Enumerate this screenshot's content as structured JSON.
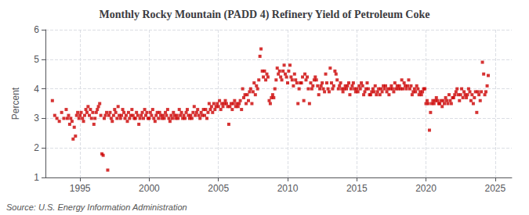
{
  "chart_data": {
    "type": "scatter",
    "title": "Monthly Rocky Mountain (PADD 4) Refinery Yield of Petroleum Coke",
    "ylabel": "Percent",
    "annotation": "Source: U.S. Energy Information Administration",
    "color": "#cc0000",
    "marker": "square",
    "grid": true,
    "xlim": [
      1992.5,
      2026.2
    ],
    "xticks": [
      1995,
      2000,
      2005,
      2010,
      2015,
      2020,
      2025
    ],
    "ylim": [
      1,
      6
    ],
    "yticks": [
      1,
      2,
      3,
      4,
      5,
      6
    ],
    "x": [
      1993.0,
      1993.17,
      1993.33,
      1993.5,
      1993.67,
      1993.83,
      1994.0,
      1994.08,
      1994.17,
      1994.25,
      1994.33,
      1994.42,
      1994.5,
      1994.58,
      1994.67,
      1994.75,
      1994.83,
      1994.92,
      1995.0,
      1995.08,
      1995.17,
      1995.25,
      1995.33,
      1995.42,
      1995.5,
      1995.58,
      1995.67,
      1995.75,
      1995.83,
      1995.92,
      1996.0,
      1996.08,
      1996.17,
      1996.25,
      1996.33,
      1996.42,
      1996.5,
      1996.58,
      1996.67,
      1996.75,
      1996.83,
      1996.92,
      1997.0,
      1997.08,
      1997.17,
      1997.25,
      1997.33,
      1997.42,
      1997.5,
      1997.58,
      1997.67,
      1997.75,
      1997.83,
      1997.92,
      1998.0,
      1998.08,
      1998.17,
      1998.25,
      1998.33,
      1998.42,
      1998.5,
      1998.58,
      1998.67,
      1998.75,
      1998.83,
      1998.92,
      1999.0,
      1999.08,
      1999.17,
      1999.25,
      1999.33,
      1999.42,
      1999.5,
      1999.58,
      1999.67,
      1999.75,
      1999.83,
      1999.92,
      2000.0,
      2000.08,
      2000.17,
      2000.25,
      2000.33,
      2000.42,
      2000.5,
      2000.58,
      2000.67,
      2000.75,
      2000.83,
      2000.92,
      2001.0,
      2001.08,
      2001.17,
      2001.25,
      2001.33,
      2001.42,
      2001.5,
      2001.58,
      2001.67,
      2001.75,
      2001.83,
      2001.92,
      2002.0,
      2002.08,
      2002.17,
      2002.25,
      2002.33,
      2002.42,
      2002.5,
      2002.58,
      2002.67,
      2002.75,
      2002.83,
      2002.92,
      2003.0,
      2003.08,
      2003.17,
      2003.25,
      2003.33,
      2003.42,
      2003.5,
      2003.58,
      2003.67,
      2003.75,
      2003.83,
      2003.92,
      2004.0,
      2004.08,
      2004.17,
      2004.25,
      2004.33,
      2004.42,
      2004.5,
      2004.58,
      2004.67,
      2004.75,
      2004.83,
      2004.92,
      2005.0,
      2005.08,
      2005.17,
      2005.25,
      2005.33,
      2005.42,
      2005.5,
      2005.58,
      2005.67,
      2005.75,
      2005.83,
      2005.92,
      2006.0,
      2006.08,
      2006.17,
      2006.25,
      2006.33,
      2006.42,
      2006.5,
      2006.58,
      2006.67,
      2006.75,
      2006.83,
      2006.92,
      2007.0,
      2007.08,
      2007.17,
      2007.25,
      2007.33,
      2007.42,
      2007.5,
      2007.58,
      2007.67,
      2007.75,
      2007.83,
      2007.92,
      2008.0,
      2008.08,
      2008.17,
      2008.25,
      2008.33,
      2008.42,
      2008.5,
      2008.58,
      2008.67,
      2008.75,
      2008.83,
      2008.92,
      2009.0,
      2009.08,
      2009.17,
      2009.25,
      2009.33,
      2009.42,
      2009.5,
      2009.58,
      2009.67,
      2009.75,
      2009.83,
      2009.92,
      2010.0,
      2010.08,
      2010.17,
      2010.25,
      2010.33,
      2010.42,
      2010.5,
      2010.58,
      2010.67,
      2010.75,
      2010.83,
      2010.92,
      2011.0,
      2011.08,
      2011.17,
      2011.25,
      2011.33,
      2011.42,
      2011.5,
      2011.58,
      2011.67,
      2011.75,
      2011.83,
      2011.92,
      2012.0,
      2012.08,
      2012.17,
      2012.25,
      2012.33,
      2012.42,
      2012.5,
      2012.58,
      2012.67,
      2012.75,
      2012.83,
      2012.92,
      2013.0,
      2013.08,
      2013.17,
      2013.25,
      2013.33,
      2013.42,
      2013.5,
      2013.58,
      2013.67,
      2013.75,
      2013.83,
      2013.92,
      2014.0,
      2014.08,
      2014.17,
      2014.25,
      2014.33,
      2014.42,
      2014.5,
      2014.58,
      2014.67,
      2014.75,
      2014.83,
      2014.92,
      2015.0,
      2015.08,
      2015.17,
      2015.25,
      2015.33,
      2015.42,
      2015.5,
      2015.58,
      2015.67,
      2015.75,
      2015.83,
      2015.92,
      2016.0,
      2016.08,
      2016.17,
      2016.25,
      2016.33,
      2016.42,
      2016.5,
      2016.58,
      2016.67,
      2016.75,
      2016.83,
      2016.92,
      2017.0,
      2017.08,
      2017.17,
      2017.25,
      2017.33,
      2017.42,
      2017.5,
      2017.58,
      2017.67,
      2017.75,
      2017.83,
      2017.92,
      2018.0,
      2018.08,
      2018.17,
      2018.25,
      2018.33,
      2018.42,
      2018.5,
      2018.58,
      2018.67,
      2018.75,
      2018.83,
      2018.92,
      2019.0,
      2019.08,
      2019.17,
      2019.25,
      2019.33,
      2019.42,
      2019.5,
      2019.58,
      2019.67,
      2019.75,
      2019.83,
      2019.92,
      2020.0,
      2020.08,
      2020.17,
      2020.25,
      2020.33,
      2020.42,
      2020.5,
      2020.58,
      2020.67,
      2020.75,
      2020.83,
      2020.92,
      2021.0,
      2021.08,
      2021.17,
      2021.25,
      2021.33,
      2021.42,
      2021.5,
      2021.58,
      2021.67,
      2021.75,
      2021.83,
      2021.92,
      2022.0,
      2022.08,
      2022.17,
      2022.25,
      2022.33,
      2022.42,
      2022.5,
      2022.58,
      2022.67,
      2022.75,
      2022.83,
      2022.92,
      2023.0,
      2023.08,
      2023.17,
      2023.25,
      2023.33,
      2023.42,
      2023.5,
      2023.58,
      2023.67,
      2023.75,
      2023.83,
      2023.92,
      2024.0,
      2024.08,
      2024.17,
      2024.25,
      2024.33,
      2024.42,
      2024.5
    ],
    "values": [
      3.6,
      3.1,
      3.0,
      2.9,
      3.2,
      3.0,
      3.3,
      3.0,
      3.1,
      2.8,
      3.0,
      2.9,
      2.3,
      2.7,
      2.4,
      3.1,
      3.2,
      3.0,
      3.1,
      3.2,
      3.0,
      2.9,
      3.1,
      3.3,
      3.2,
      3.4,
      3.1,
      3.3,
      3.0,
      3.2,
      2.8,
      3.0,
      3.2,
      3.3,
      3.4,
      3.5,
      3.1,
      1.8,
      1.75,
      3.0,
      3.1,
      3.2,
      1.25,
      3.1,
      3.2,
      3.0,
      2.9,
      3.1,
      3.3,
      3.2,
      3.0,
      3.4,
      3.1,
      3.0,
      3.1,
      3.3,
      3.2,
      3.0,
      3.1,
      2.9,
      3.2,
      3.0,
      3.1,
      3.3,
      3.1,
      3.0,
      3.0,
      3.2,
      3.1,
      2.8,
      3.0,
      3.1,
      3.2,
      3.0,
      3.3,
      3.1,
      3.2,
      3.0,
      3.0,
      3.2,
      3.1,
      3.3,
      3.0,
      2.9,
      3.1,
      3.2,
      3.0,
      3.2,
      3.1,
      3.0,
      3.1,
      3.0,
      3.2,
      3.1,
      3.3,
      3.0,
      2.9,
      3.1,
      3.0,
      3.2,
      3.1,
      3.0,
      3.1,
      3.0,
      3.3,
      3.1,
      3.2,
      3.0,
      3.1,
      3.0,
      3.2,
      3.3,
      3.1,
      3.0,
      3.1,
      3.0,
      3.2,
      3.4,
      3.1,
      3.2,
      3.3,
      3.1,
      3.0,
      3.2,
      3.1,
      3.3,
      3.1,
      3.3,
      3.0,
      3.2,
      3.5,
      3.3,
      3.4,
      3.2,
      3.5,
      3.3,
      3.4,
      3.5,
      3.4,
      3.6,
      3.3,
      3.5,
      3.4,
      3.5,
      3.6,
      3.5,
      3.4,
      2.8,
      3.4,
      3.5,
      3.3,
      3.5,
      3.6,
      3.4,
      3.5,
      3.4,
      3.5,
      3.6,
      3.3,
      4.0,
      3.7,
      3.8,
      3.5,
      3.8,
      3.6,
      3.9,
      4.0,
      3.5,
      3.9,
      4.2,
      3.8,
      4.1,
      4.0,
      4.3,
      5.1,
      5.35,
      4.6,
      4.4,
      4.6,
      4.3,
      4.5,
      4.4,
      3.6,
      3.5,
      3.7,
      3.8,
      3.7,
      4.0,
      4.3,
      4.7,
      4.5,
      4.6,
      4.4,
      4.3,
      4.6,
      4.8,
      4.5,
      4.4,
      4.2,
      4.6,
      4.8,
      4.4,
      4.3,
      4.1,
      4.5,
      4.3,
      4.2,
      3.5,
      4.0,
      4.2,
      4.2,
      4.4,
      3.6,
      4.5,
      4.3,
      4.4,
      4.0,
      3.5,
      4.2,
      4.0,
      4.1,
      4.3,
      4.4,
      4.3,
      4.1,
      3.8,
      4.0,
      4.1,
      4.2,
      4.0,
      3.9,
      4.5,
      4.2,
      4.0,
      3.9,
      4.7,
      4.2,
      4.0,
      4.1,
      4.6,
      4.5,
      4.3,
      4.0,
      4.1,
      4.2,
      4.0,
      3.9,
      4.0,
      4.1,
      4.0,
      4.1,
      4.2,
      3.8,
      4.0,
      4.1,
      4.2,
      4.0,
      3.9,
      4.0,
      3.9,
      4.1,
      4.0,
      4.2,
      4.1,
      3.8,
      3.9,
      4.0,
      4.2,
      4.0,
      3.8,
      3.8,
      3.9,
      4.0,
      3.9,
      4.1,
      3.8,
      3.9,
      4.0,
      3.8,
      4.0,
      3.9,
      4.1,
      4.0,
      4.1,
      3.9,
      4.0,
      3.8,
      4.0,
      4.1,
      4.0,
      3.9,
      4.2,
      4.0,
      4.1,
      4.0,
      4.1,
      4.0,
      4.3,
      4.0,
      4.2,
      4.1,
      4.0,
      4.1,
      4.3,
      4.0,
      4.1,
      3.8,
      3.9,
      4.0,
      3.9,
      4.1,
      4.0,
      3.8,
      3.9,
      3.8,
      3.9,
      4.0,
      4.0,
      3.5,
      3.6,
      3.5,
      2.6,
      3.2,
      3.5,
      3.6,
      3.5,
      3.6,
      3.7,
      3.6,
      3.5,
      3.5,
      3.6,
      3.4,
      3.6,
      3.5,
      3.7,
      3.6,
      3.5,
      3.8,
      3.6,
      3.5,
      3.7,
      3.7,
      3.8,
      3.9,
      4.0,
      3.8,
      3.6,
      3.8,
      4.0,
      3.7,
      3.9,
      3.8,
      3.7,
      3.8,
      4.0,
      3.9,
      3.6,
      3.8,
      3.5,
      3.7,
      3.9,
      3.2,
      3.9,
      3.8,
      3.6,
      3.9,
      4.9,
      4.5,
      3.8,
      3.9,
      4.1,
      4.45
    ]
  }
}
